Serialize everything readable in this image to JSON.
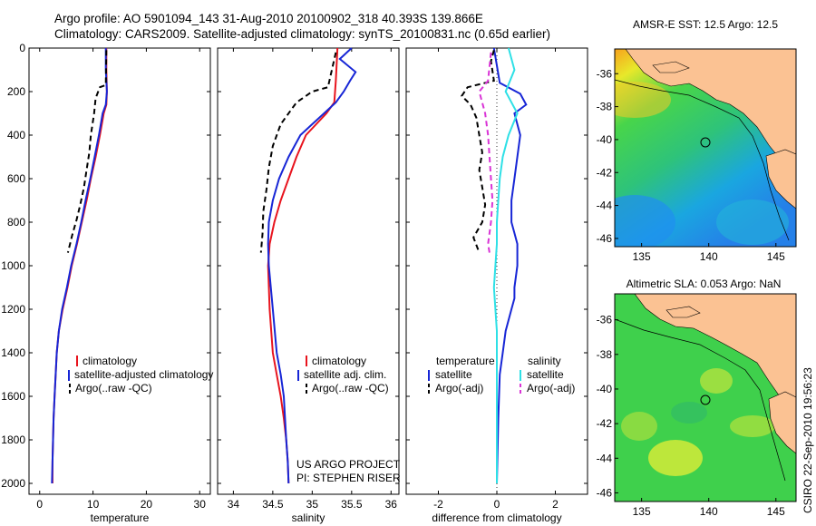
{
  "header": {
    "line1": "Argo profile: AO 5901094_143 31-Aug-2010 20100902_318 40.393S 139.866E",
    "line2": "Climatology: CARS2009. Satellite-adjusted climatology: synTS_20100831.nc (0.65d earlier)"
  },
  "credit": {
    "text": "CSIRO 22-Sep-2010 19:56:23"
  },
  "colors": {
    "red": "#e8141e",
    "blue": "#1726d6",
    "black": "#000000",
    "magenta": "#d934d6",
    "cyan": "#2ee0e6"
  },
  "chart_data": [
    {
      "type": "line",
      "id": "temperature",
      "xlabel": "temperature",
      "ylabel": "",
      "xlim": [
        -2,
        32
      ],
      "ylim": [
        0,
        2050
      ],
      "y_reversed": true,
      "xticks": [
        0,
        10,
        20,
        30
      ],
      "yticks": [
        0,
        200,
        400,
        600,
        800,
        1000,
        1200,
        1400,
        1600,
        1800,
        2000
      ],
      "legend": [
        "climatology",
        "satellite-adjusted climatology",
        "Argo(..raw -QC)"
      ],
      "series": [
        {
          "name": "climatology",
          "color": "red",
          "dash": "solid",
          "x": [
            12.5,
            12.5,
            12.6,
            12.5,
            12.0,
            11.3,
            10.5,
            9.6,
            8.8,
            7.9,
            7.0,
            6.0,
            5.2,
            4.3,
            3.6,
            3.2,
            3.0,
            2.8,
            2.6,
            2.5,
            2.4,
            2.4
          ],
          "y": [
            0,
            100,
            200,
            260,
            300,
            400,
            500,
            600,
            700,
            800,
            900,
            1000,
            1100,
            1200,
            1300,
            1400,
            1500,
            1600,
            1700,
            1800,
            1900,
            2000
          ]
        },
        {
          "name": "satellite-adjusted climatology",
          "color": "blue",
          "dash": "solid",
          "x": [
            12.4,
            12.4,
            12.6,
            12.4,
            11.8,
            11.1,
            10.3,
            9.5,
            8.6,
            7.8,
            6.9,
            5.9,
            5.1,
            4.2,
            3.6,
            3.2,
            3.0,
            2.8,
            2.6,
            2.5,
            2.4,
            2.3
          ],
          "y": [
            0,
            100,
            200,
            260,
            300,
            400,
            500,
            600,
            700,
            800,
            900,
            1000,
            1100,
            1200,
            1300,
            1400,
            1500,
            1600,
            1700,
            1800,
            1900,
            2000
          ]
        },
        {
          "name": "Argo(..raw -QC)",
          "color": "black",
          "dash": "dashed",
          "x": [
            12.5,
            12.4,
            11.3,
            10.5,
            10.2,
            9.6,
            9.3,
            8.8,
            8.3,
            7.6,
            6.9,
            6.1,
            5.3
          ],
          "y": [
            10,
            170,
            180,
            230,
            300,
            400,
            480,
            560,
            640,
            720,
            790,
            860,
            940
          ]
        }
      ]
    },
    {
      "type": "line",
      "id": "salinity",
      "xlabel": "salinity",
      "ylabel": "",
      "xlim": [
        33.8,
        36.1
      ],
      "ylim": [
        0,
        2050
      ],
      "y_reversed": true,
      "xticks": [
        34,
        34.5,
        35,
        35.5,
        36
      ],
      "legend": [
        "climatology",
        "satellite adj. clim.",
        "Argo(..raw -QC)"
      ],
      "annotations": [
        "US ARGO PROJECT",
        "PI: STEPHEN RISER"
      ],
      "series": [
        {
          "name": "climatology",
          "color": "red",
          "dash": "solid",
          "x": [
            35.32,
            35.3,
            35.28,
            35.18,
            35.05,
            34.92,
            34.8,
            34.7,
            34.6,
            34.52,
            34.46,
            34.44,
            34.46,
            34.5,
            34.55,
            34.6,
            34.64,
            34.67,
            34.69,
            34.7
          ],
          "y": [
            0,
            150,
            250,
            300,
            350,
            400,
            500,
            600,
            700,
            800,
            900,
            1000,
            1200,
            1400,
            1500,
            1600,
            1700,
            1800,
            1900,
            2000
          ]
        },
        {
          "name": "satellite adj. clim.",
          "color": "blue",
          "dash": "solid",
          "x": [
            35.5,
            35.35,
            35.55,
            35.48,
            35.4,
            35.3,
            35.15,
            35.0,
            34.85,
            34.7,
            34.58,
            34.5,
            34.45,
            34.44,
            34.45,
            34.5,
            34.55,
            34.6,
            34.64,
            34.67,
            34.69,
            34.7
          ],
          "y": [
            0,
            50,
            110,
            150,
            200,
            250,
            300,
            350,
            400,
            500,
            600,
            700,
            800,
            900,
            1000,
            1200,
            1400,
            1500,
            1600,
            1800,
            1900,
            2000
          ]
        },
        {
          "name": "Argo(..raw -QC)",
          "color": "black",
          "dash": "dashed",
          "x": [
            35.3,
            35.2,
            35.0,
            34.8,
            34.6,
            34.5,
            34.45,
            34.42,
            34.38,
            34.37,
            34.35
          ],
          "y": [
            20,
            180,
            200,
            250,
            350,
            450,
            550,
            650,
            750,
            850,
            940
          ]
        }
      ]
    },
    {
      "type": "line",
      "id": "difference",
      "xlabel": "difference from climatology",
      "ylabel": "",
      "xlim": [
        -3.1,
        3.1
      ],
      "ylim": [
        0,
        2050
      ],
      "y_reversed": true,
      "xticks": [
        -2,
        0,
        2
      ],
      "legend_groups": [
        {
          "title": "temperature",
          "items": [
            "satellite",
            "Argo(-adj)"
          ]
        },
        {
          "title": "salinity",
          "items": [
            "satellite",
            "Argo(-adj)"
          ]
        }
      ],
      "series": [
        {
          "name": "temperature satellite",
          "color": "blue",
          "dash": "solid",
          "x": [
            -0.1,
            -0.05,
            0.0,
            0.1,
            0.8,
            1.0,
            0.6,
            0.8,
            0.7,
            0.6,
            0.5,
            0.5,
            0.6,
            0.7,
            0.7,
            0.6,
            0.6,
            0.5,
            0.3,
            0.2,
            0.1,
            0.05,
            0.0
          ],
          "y": [
            0,
            40,
            80,
            160,
            210,
            260,
            300,
            400,
            500,
            600,
            700,
            800,
            850,
            900,
            1000,
            1100,
            1150,
            1200,
            1300,
            1400,
            1500,
            1700,
            2000
          ]
        },
        {
          "name": "temperature Argo(-adj)",
          "color": "black",
          "dash": "dashed",
          "x": [
            -0.1,
            -0.2,
            -0.1,
            -1.0,
            -1.2,
            -0.9,
            -0.7,
            -0.6,
            -0.5,
            -0.6,
            -0.5,
            -0.4,
            -0.5,
            -0.8,
            -0.6
          ],
          "y": [
            10,
            60,
            150,
            180,
            220,
            260,
            320,
            400,
            480,
            560,
            640,
            720,
            800,
            870,
            940
          ]
        },
        {
          "name": "salinity satellite",
          "color": "cyan",
          "dash": "solid",
          "x": [
            0.4,
            0.6,
            0.3,
            0.7,
            0.4,
            0.2,
            0.1,
            0.05,
            0.0,
            0.0,
            -0.05,
            -0.1,
            0.0,
            0.0,
            0.0
          ],
          "y": [
            0,
            100,
            200,
            300,
            400,
            500,
            600,
            700,
            800,
            900,
            1000,
            1100,
            1300,
            1600,
            2000
          ]
        },
        {
          "name": "salinity Argo(-adj)",
          "color": "magenta",
          "dash": "dashed",
          "x": [
            -0.2,
            -0.3,
            -0.6,
            -0.4,
            -0.3,
            -0.25,
            -0.2,
            -0.15,
            -0.2,
            -0.3,
            -0.25
          ],
          "y": [
            20,
            150,
            200,
            300,
            400,
            500,
            600,
            700,
            800,
            900,
            940
          ]
        }
      ]
    },
    {
      "type": "heatmap",
      "id": "sst_map",
      "title": "AMSR-E SST: 12.5 Argo: 12.5",
      "xlim": [
        133,
        146.5
      ],
      "ylim": [
        -46.5,
        -34.5
      ],
      "xticks": [
        135,
        140,
        145
      ],
      "yticks": [
        -36,
        -38,
        -40,
        -42,
        -44,
        -46
      ],
      "argo_position": {
        "lon": 139.866,
        "lat": -40.393
      }
    },
    {
      "type": "heatmap",
      "id": "sla_map",
      "title": "Altimetric SLA: 0.053 Argo: NaN",
      "xlim": [
        133,
        146.5
      ],
      "ylim": [
        -46.5,
        -34.5
      ],
      "xticks": [
        135,
        140,
        145
      ],
      "yticks": [
        -36,
        -38,
        -40,
        -42,
        -44,
        -46
      ],
      "argo_position": {
        "lon": 139.866,
        "lat": -40.393
      }
    }
  ]
}
